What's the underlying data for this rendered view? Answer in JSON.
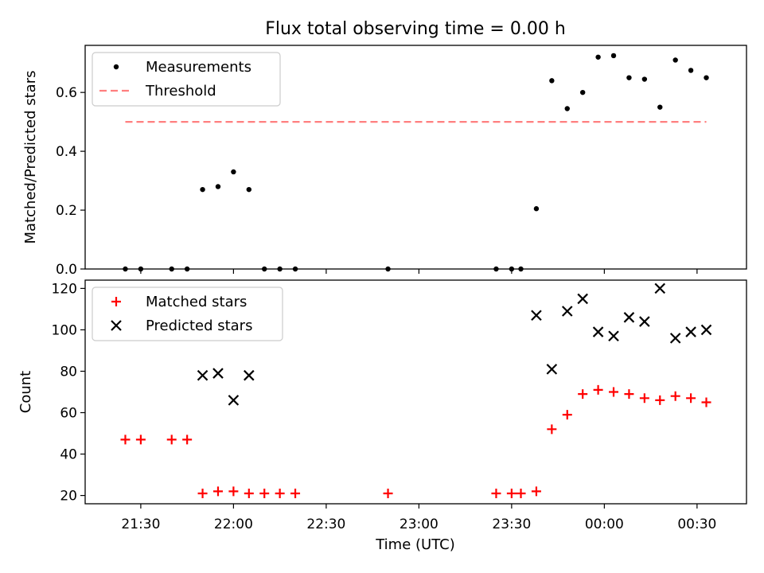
{
  "chart_data": [
    {
      "type": "scatter",
      "title": "Flux total observing time = 0.00 h",
      "xlabel": "",
      "ylabel": "Matched/Predicted stars",
      "ylim": [
        0,
        0.76
      ],
      "yticks": [
        "0.0",
        "0.2",
        "0.4",
        "0.6"
      ],
      "xtick_labels": [],
      "legend_position": "upper-left",
      "series": [
        {
          "name": "Measurements",
          "marker": "dot",
          "color": "#000000",
          "x": [
            "21:25",
            "21:30",
            "21:40",
            "21:45",
            "21:50",
            "21:55",
            "22:00",
            "22:05",
            "22:10",
            "22:15",
            "22:20",
            "22:50",
            "23:25",
            "23:30",
            "23:33",
            "23:38",
            "23:43",
            "23:48",
            "23:53",
            "23:58",
            "00:03",
            "00:08",
            "00:13",
            "00:18",
            "00:23",
            "00:28",
            "00:33"
          ],
          "y": [
            0,
            0,
            0,
            0,
            0.27,
            0.28,
            0.33,
            0.27,
            0,
            0,
            0,
            0,
            0,
            0,
            0,
            0.205,
            0.64,
            0.545,
            0.6,
            0.72,
            0.725,
            0.65,
            0.645,
            0.55,
            0.71,
            0.675,
            0.65
          ]
        },
        {
          "name": "Threshold",
          "marker": "dashed-line",
          "color": "#ff7f7f",
          "x": [
            "21:25",
            "00:33"
          ],
          "y": [
            0.5,
            0.5
          ]
        }
      ]
    },
    {
      "type": "scatter",
      "title": "",
      "xlabel": "Time (UTC)",
      "ylabel": "Count",
      "ylim": [
        16,
        124
      ],
      "yticks": [
        "20",
        "40",
        "60",
        "80",
        "100",
        "120"
      ],
      "xtick_labels": [
        "21:30",
        "22:00",
        "22:30",
        "23:00",
        "23:30",
        "00:00",
        "00:30"
      ],
      "legend_position": "upper-left",
      "series": [
        {
          "name": "Matched stars",
          "marker": "plus",
          "color": "#ff0000",
          "x": [
            "21:25",
            "21:30",
            "21:40",
            "21:45",
            "21:50",
            "21:55",
            "22:00",
            "22:05",
            "22:10",
            "22:15",
            "22:20",
            "22:50",
            "23:25",
            "23:30",
            "23:33",
            "23:38",
            "23:43",
            "23:48",
            "23:53",
            "23:58",
            "00:03",
            "00:08",
            "00:13",
            "00:18",
            "00:23",
            "00:28",
            "00:33"
          ],
          "y": [
            47,
            47,
            47,
            47,
            21,
            22,
            22,
            21,
            21,
            21,
            21,
            21,
            21,
            21,
            21,
            22,
            52,
            59,
            69,
            71,
            70,
            69,
            67,
            66,
            68,
            67,
            65
          ]
        },
        {
          "name": "Predicted stars",
          "marker": "x",
          "color": "#000000",
          "x": [
            "21:50",
            "21:55",
            "22:00",
            "22:05",
            "23:38",
            "23:43",
            "23:48",
            "23:53",
            "23:58",
            "00:03",
            "00:08",
            "00:13",
            "00:18",
            "00:23",
            "00:28",
            "00:33"
          ],
          "y": [
            78,
            79,
            66,
            78,
            107,
            81,
            109,
            115,
            99,
            97,
            106,
            104,
            120,
            96,
            99,
            100
          ]
        }
      ]
    }
  ]
}
